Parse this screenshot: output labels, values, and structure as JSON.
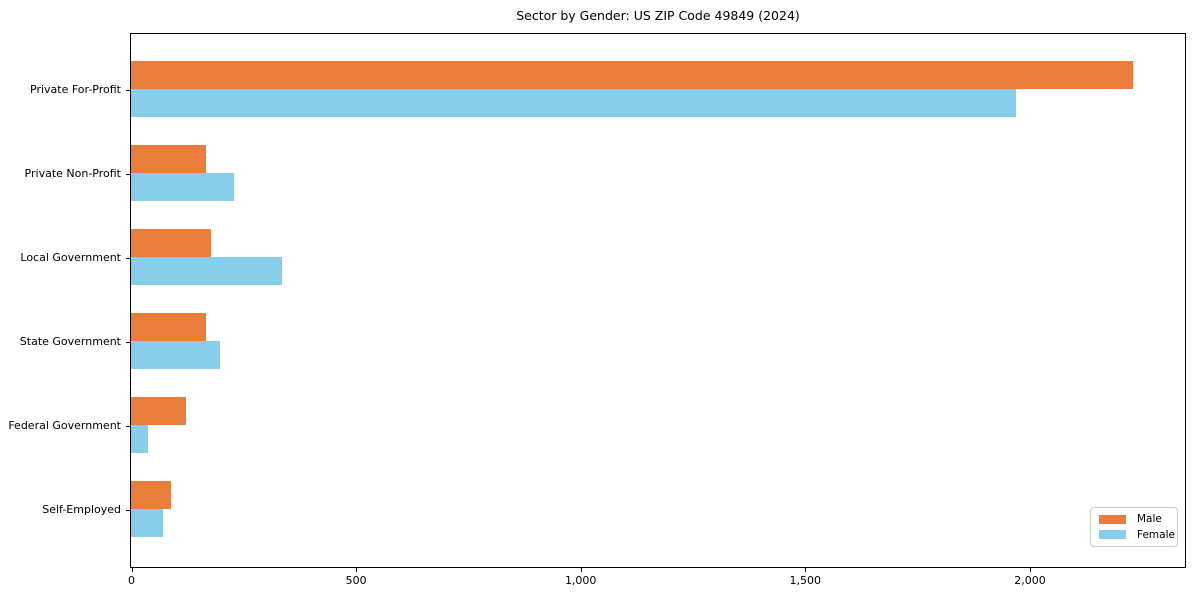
{
  "chart_data": {
    "type": "bar",
    "orientation": "horizontal",
    "title": "Sector by Gender: US ZIP Code 49849 (2024)",
    "categories": [
      "Private For-Profit",
      "Private Non-Profit",
      "Local Government",
      "State Government",
      "Federal Government",
      "Self-Employed"
    ],
    "series": [
      {
        "name": "Male",
        "color": "#E87D3C",
        "values": [
          2231,
          166,
          178,
          166,
          122,
          88
        ]
      },
      {
        "name": "Female",
        "color": "#87CEEB",
        "values": [
          1971,
          230,
          335,
          199,
          38,
          72
        ]
      }
    ],
    "xlabel": "",
    "ylabel": "",
    "xlim": [
      0,
      2344
    ],
    "xticks": [
      0,
      500,
      1000,
      1500,
      2000
    ],
    "xtick_labels": [
      "0",
      "500",
      "1,000",
      "1,500",
      "2,000"
    ],
    "grid": false,
    "legend_position": "lower right",
    "legend_entries": [
      "Male",
      "Female"
    ]
  },
  "colors": {
    "spine": "#000000",
    "tick": "#000000",
    "legend_border": "#cccccc",
    "background": "#ffffff"
  }
}
